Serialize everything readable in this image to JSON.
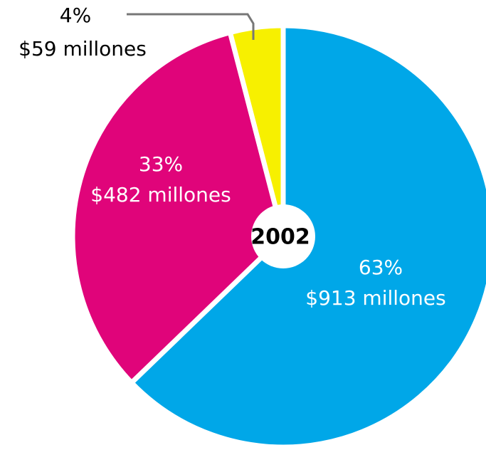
{
  "chart_data": {
    "type": "pie",
    "title": "",
    "center_label": "2002",
    "slices": [
      {
        "percent_label": "63%",
        "value_label": "$913 millones",
        "value": 913,
        "color": "#00a7e8"
      },
      {
        "percent_label": "33%",
        "value_label": "$482 millones",
        "value": 482,
        "color": "#e0047a"
      },
      {
        "percent_label": "4%",
        "value_label": "$59 millones",
        "value": 59,
        "color": "#f7f000"
      }
    ],
    "label_color_inside": "#ffffff",
    "label_color_outside": "#000000",
    "leader_line_color": "#777777"
  }
}
